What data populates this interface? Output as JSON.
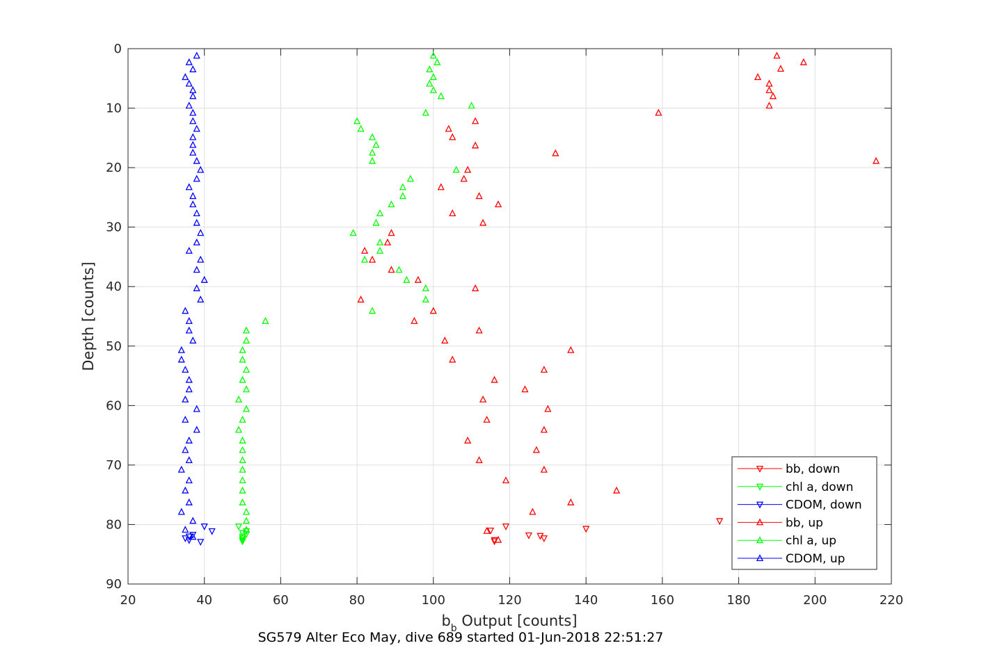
{
  "chart_data": {
    "type": "scatter",
    "title": "SG579 Alter Eco May, dive 689 started 01-Jun-2018 22:51:27",
    "xlabel_main": "b",
    "xlabel_sub": "b",
    "xlabel_rest": " Output [counts]",
    "ylabel": "Depth [counts]",
    "xlim": [
      20,
      220
    ],
    "ylim": [
      0,
      90
    ],
    "y_reversed": true,
    "xticks": [
      "20",
      "40",
      "60",
      "80",
      "100",
      "120",
      "140",
      "160",
      "180",
      "200",
      "220"
    ],
    "yticks": [
      "0",
      "10",
      "20",
      "30",
      "40",
      "50",
      "60",
      "70",
      "80",
      "90"
    ],
    "grid": true,
    "legend_position": "bottom-right",
    "series": [
      {
        "name": "bb, down",
        "color": "#ff0000",
        "marker": "triangle-down",
        "points": [
          [
            115,
            81.0
          ],
          [
            119,
            80.3
          ],
          [
            116,
            82.6
          ],
          [
            116,
            82.8
          ],
          [
            125,
            81.8
          ],
          [
            128,
            81.9
          ],
          [
            129,
            82.3
          ],
          [
            140,
            80.7
          ],
          [
            175,
            79.4
          ]
        ]
      },
      {
        "name": "chl a, down",
        "color": "#00ff00",
        "marker": "triangle-down",
        "points": [
          [
            49,
            80.3
          ],
          [
            50,
            81.4
          ],
          [
            51,
            81.1
          ],
          [
            50,
            82.0
          ],
          [
            50,
            82.3
          ],
          [
            50,
            82.6
          ],
          [
            50,
            82.8
          ],
          [
            51,
            81.6
          ]
        ]
      },
      {
        "name": "CDOM, down",
        "color": "#0000ff",
        "marker": "triangle-down",
        "points": [
          [
            40,
            80.3
          ],
          [
            42,
            81.1
          ],
          [
            37,
            81.7
          ],
          [
            36,
            82.0
          ],
          [
            35,
            82.3
          ],
          [
            36,
            82.6
          ],
          [
            39,
            82.9
          ]
        ]
      },
      {
        "name": "bb, up",
        "color": "#ff0000",
        "marker": "triangle-up",
        "points": [
          [
            190,
            1.2
          ],
          [
            197,
            2.3
          ],
          [
            191,
            3.4
          ],
          [
            185,
            4.8
          ],
          [
            188,
            5.9
          ],
          [
            188,
            7.0
          ],
          [
            189,
            8.0
          ],
          [
            188,
            9.6
          ],
          [
            159,
            10.8
          ],
          [
            111,
            12.2
          ],
          [
            104,
            13.5
          ],
          [
            105,
            14.9
          ],
          [
            111,
            16.3
          ],
          [
            132,
            17.6
          ],
          [
            216,
            18.9
          ],
          [
            109,
            20.4
          ],
          [
            108,
            21.9
          ],
          [
            102,
            23.3
          ],
          [
            112,
            24.8
          ],
          [
            117,
            26.2
          ],
          [
            105,
            27.7
          ],
          [
            113,
            29.3
          ],
          [
            89,
            31.0
          ],
          [
            88,
            32.6
          ],
          [
            82,
            34.0
          ],
          [
            84,
            35.5
          ],
          [
            89,
            37.2
          ],
          [
            96,
            38.9
          ],
          [
            111,
            40.3
          ],
          [
            81,
            42.2
          ],
          [
            100,
            44.1
          ],
          [
            95,
            45.8
          ],
          [
            112,
            47.4
          ],
          [
            103,
            49.1
          ],
          [
            136,
            50.7
          ],
          [
            105,
            52.3
          ],
          [
            129,
            54.0
          ],
          [
            116,
            55.7
          ],
          [
            124,
            57.3
          ],
          [
            113,
            59.0
          ],
          [
            130,
            60.6
          ],
          [
            114,
            62.4
          ],
          [
            129,
            64.1
          ],
          [
            109,
            65.9
          ],
          [
            127,
            67.5
          ],
          [
            112,
            69.2
          ],
          [
            129,
            70.8
          ],
          [
            119,
            72.6
          ],
          [
            148,
            74.3
          ],
          [
            136,
            76.3
          ],
          [
            126,
            77.9
          ],
          [
            114,
            81.1
          ],
          [
            117,
            82.6
          ]
        ]
      },
      {
        "name": "chl a, up",
        "color": "#00ff00",
        "marker": "triangle-up",
        "points": [
          [
            100,
            1.2
          ],
          [
            101,
            2.3
          ],
          [
            99,
            3.5
          ],
          [
            100,
            4.8
          ],
          [
            99,
            5.9
          ],
          [
            100,
            7.0
          ],
          [
            102,
            8.0
          ],
          [
            110,
            9.6
          ],
          [
            98,
            10.8
          ],
          [
            80,
            12.2
          ],
          [
            81,
            13.5
          ],
          [
            84,
            14.9
          ],
          [
            85,
            16.2
          ],
          [
            84,
            17.5
          ],
          [
            84,
            18.9
          ],
          [
            106,
            20.4
          ],
          [
            94,
            21.9
          ],
          [
            92,
            23.3
          ],
          [
            92,
            24.8
          ],
          [
            89,
            26.2
          ],
          [
            86,
            27.7
          ],
          [
            85,
            29.3
          ],
          [
            79,
            31.0
          ],
          [
            86,
            32.6
          ],
          [
            86,
            34.0
          ],
          [
            82,
            35.5
          ],
          [
            91,
            37.2
          ],
          [
            93,
            38.9
          ],
          [
            98,
            40.3
          ],
          [
            98,
            42.2
          ],
          [
            84,
            44.1
          ],
          [
            56,
            45.8
          ],
          [
            51,
            47.4
          ],
          [
            51,
            49.1
          ],
          [
            50,
            50.7
          ],
          [
            50,
            52.3
          ],
          [
            51,
            54.0
          ],
          [
            50,
            55.7
          ],
          [
            51,
            57.3
          ],
          [
            49,
            59.0
          ],
          [
            51,
            60.6
          ],
          [
            50,
            62.4
          ],
          [
            49,
            64.1
          ],
          [
            50,
            65.9
          ],
          [
            50,
            67.5
          ],
          [
            50,
            69.2
          ],
          [
            50,
            70.8
          ],
          [
            50,
            72.6
          ],
          [
            50,
            74.3
          ],
          [
            50,
            76.3
          ],
          [
            51,
            77.9
          ],
          [
            51,
            79.4
          ],
          [
            51,
            80.9
          ]
        ]
      },
      {
        "name": "CDOM, up",
        "color": "#0000ff",
        "marker": "triangle-up",
        "points": [
          [
            38,
            1.2
          ],
          [
            36,
            2.3
          ],
          [
            37,
            3.5
          ],
          [
            35,
            4.8
          ],
          [
            36,
            5.9
          ],
          [
            37,
            7.0
          ],
          [
            37,
            8.0
          ],
          [
            36,
            9.6
          ],
          [
            37,
            10.8
          ],
          [
            37,
            12.2
          ],
          [
            38,
            13.5
          ],
          [
            37,
            14.9
          ],
          [
            37,
            16.2
          ],
          [
            37,
            17.5
          ],
          [
            38,
            18.9
          ],
          [
            39,
            20.4
          ],
          [
            38,
            21.9
          ],
          [
            36,
            23.3
          ],
          [
            37,
            24.8
          ],
          [
            37,
            26.2
          ],
          [
            38,
            27.7
          ],
          [
            38,
            29.3
          ],
          [
            39,
            31.0
          ],
          [
            38,
            32.6
          ],
          [
            36,
            34.0
          ],
          [
            39,
            35.5
          ],
          [
            38,
            37.2
          ],
          [
            40,
            38.9
          ],
          [
            38,
            40.3
          ],
          [
            39,
            42.2
          ],
          [
            35,
            44.1
          ],
          [
            36,
            45.8
          ],
          [
            36,
            47.4
          ],
          [
            37,
            49.1
          ],
          [
            34,
            50.7
          ],
          [
            34,
            52.3
          ],
          [
            35,
            54.0
          ],
          [
            36,
            55.7
          ],
          [
            36,
            57.3
          ],
          [
            35,
            59.0
          ],
          [
            38,
            60.6
          ],
          [
            35,
            62.4
          ],
          [
            38,
            64.1
          ],
          [
            36,
            65.9
          ],
          [
            35,
            67.5
          ],
          [
            36,
            69.2
          ],
          [
            34,
            70.8
          ],
          [
            36,
            72.6
          ],
          [
            35,
            74.3
          ],
          [
            36,
            76.3
          ],
          [
            34,
            77.9
          ],
          [
            37,
            79.4
          ],
          [
            35,
            80.9
          ],
          [
            37,
            82.1
          ]
        ]
      }
    ]
  }
}
